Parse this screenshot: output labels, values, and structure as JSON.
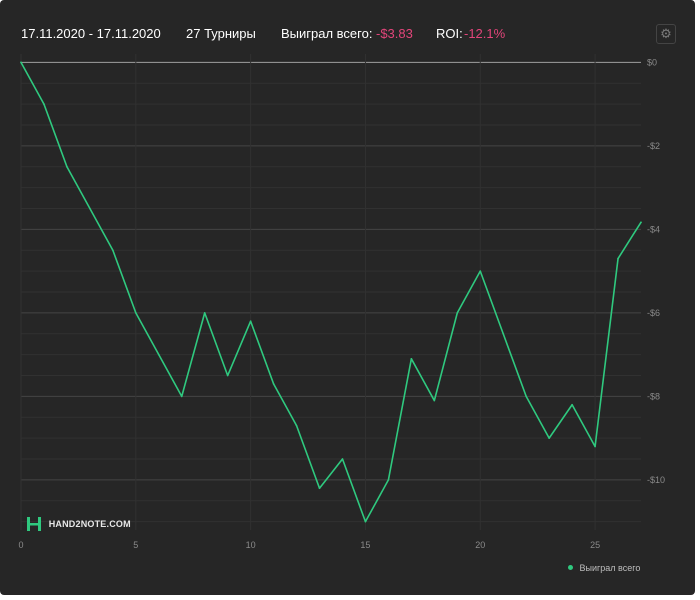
{
  "header": {
    "date_range": "17.11.2020 - 17.11.2020",
    "tournaments": "27 Турниры",
    "won_label": "Выиграл всего:",
    "won_value": "-$3.83",
    "roi_label": "ROI:",
    "roi_value": "-12.1%",
    "settings_icon": "gear-icon"
  },
  "logo": {
    "text": "HAND2NOTE.COM"
  },
  "colors": {
    "background": "#262626",
    "line": "#2fc97f",
    "negative": "#e2457a",
    "grid": "#3a3a3a",
    "zero_line": "#a0a0a0"
  },
  "chart_data": {
    "type": "line",
    "series": [
      {
        "name": "Выиграл всего",
        "x": [
          0,
          1,
          2,
          3,
          4,
          5,
          6,
          7,
          8,
          9,
          10,
          11,
          12,
          13,
          14,
          15,
          16,
          17,
          18,
          19,
          20,
          21,
          22,
          23,
          24,
          25,
          26,
          27
        ],
        "values": [
          0,
          -1.0,
          -2.5,
          -3.5,
          -4.5,
          -6.0,
          -7.0,
          -8.0,
          -6.0,
          -7.5,
          -6.2,
          -7.7,
          -8.7,
          -10.2,
          -9.5,
          -11.0,
          -10.0,
          -7.1,
          -8.1,
          -6.0,
          -5.0,
          -6.5,
          -8.0,
          -9.0,
          -8.2,
          -9.2,
          -4.7,
          -3.83
        ]
      }
    ],
    "x_ticks": [
      0,
      5,
      10,
      15,
      20,
      25
    ],
    "y_ticks": [
      0,
      -2,
      -4,
      -6,
      -8,
      -10
    ],
    "y_tick_labels": [
      "$0",
      "-$2",
      "-$4",
      "-$6",
      "-$8",
      "-$10"
    ],
    "xlim": [
      0,
      27
    ],
    "ylim": [
      -11.2,
      0.2
    ],
    "grid": true,
    "legend_position": "bottom-right",
    "title": "",
    "xlabel": "",
    "ylabel": ""
  }
}
